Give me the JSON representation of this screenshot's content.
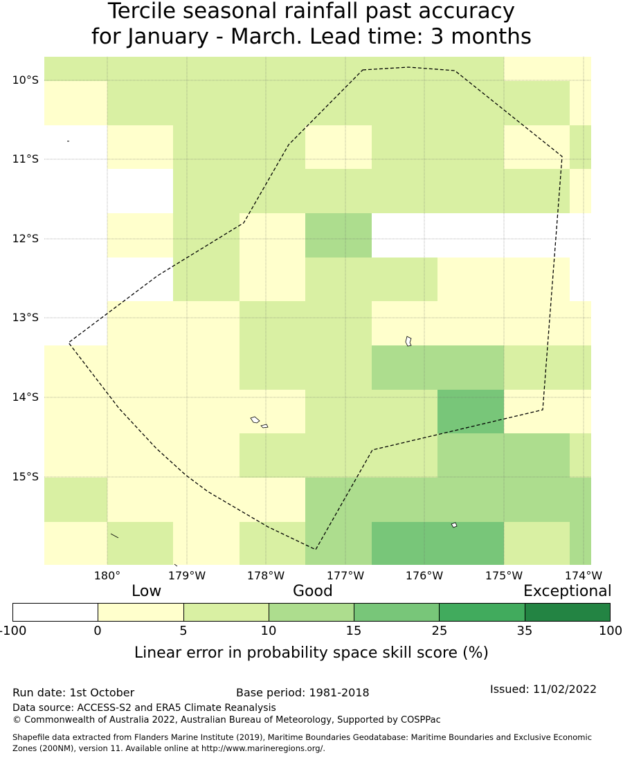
{
  "title": {
    "line1": "Tercile seasonal rainfall past accuracy",
    "line2": "for January - March. Lead time: 3 months"
  },
  "map": {
    "lat_labels": [
      "10°S",
      "11°S",
      "12°S",
      "13°S",
      "14°S",
      "15°S"
    ],
    "lon_labels": [
      "180°",
      "179°W",
      "178°W",
      "177°W",
      "176°W",
      "175°W",
      "174°W"
    ],
    "lon_range": [
      179.2,
      186.1
    ],
    "lat_range": [
      -15.1,
      -9.3
    ],
    "grid": {
      "category_colors": [
        "#ffffff",
        "#ffffcc",
        "#d9f0a3",
        "#addd8e",
        "#78c679",
        "#41ab5d",
        "#238443"
      ],
      "rows": [
        [
          2,
          2,
          2,
          2,
          2,
          2,
          2,
          1,
          1,
          2,
          2,
          1
        ],
        [
          1,
          2,
          2,
          2,
          2,
          2,
          2,
          2,
          1,
          2,
          0,
          0
        ],
        [
          0,
          1,
          2,
          2,
          1,
          2,
          2,
          1,
          2,
          2,
          1,
          1
        ],
        [
          0,
          0,
          2,
          2,
          2,
          2,
          2,
          2,
          1,
          0,
          0,
          1
        ],
        [
          0,
          1,
          2,
          1,
          3,
          0,
          0,
          0,
          0,
          0,
          0,
          0
        ],
        [
          0,
          0,
          2,
          1,
          2,
          2,
          1,
          1,
          0,
          0,
          2,
          2
        ],
        [
          0,
          1,
          1,
          2,
          2,
          1,
          1,
          1,
          1,
          1,
          1,
          1
        ],
        [
          1,
          1,
          1,
          2,
          2,
          3,
          3,
          2,
          2,
          2,
          2,
          2
        ],
        [
          1,
          1,
          1,
          1,
          2,
          2,
          4,
          1,
          1,
          1,
          1,
          1
        ],
        [
          1,
          1,
          1,
          2,
          2,
          2,
          3,
          3,
          2,
          2,
          3,
          3
        ],
        [
          2,
          1,
          1,
          1,
          3,
          3,
          3,
          3,
          3,
          3,
          3,
          3
        ],
        [
          1,
          2,
          1,
          2,
          3,
          4,
          4,
          2,
          3,
          3,
          3,
          3
        ]
      ]
    }
  },
  "legend": {
    "low": "Low",
    "good": "Good",
    "exceptional": "Exceptional",
    "ticks": [
      "-100",
      "0",
      "5",
      "10",
      "15",
      "25",
      "35",
      "100"
    ],
    "label": "Linear error in probability space skill score (%)"
  },
  "footer": {
    "run_date": "Run date: 1st October",
    "base_period": "Base period: 1981-2018",
    "issued": "Issued: 11/02/2022",
    "data_source": "Data source: ACCESS-S2 and ERA5 Climate Reanalysis",
    "copyright": "© Commonwealth of Australia 2022, Australian Bureau of Meteorology, Supported by COSPPac",
    "shapefile_line1": "Shapefile data extracted from Flanders Marine Institute (2019), Maritime Boundaries Geodatabase: Maritime Boundaries and Exclusive Economic",
    "shapefile_line2": "Zones (200NM), version 11. Available online at http://www.marineregions.org/."
  }
}
